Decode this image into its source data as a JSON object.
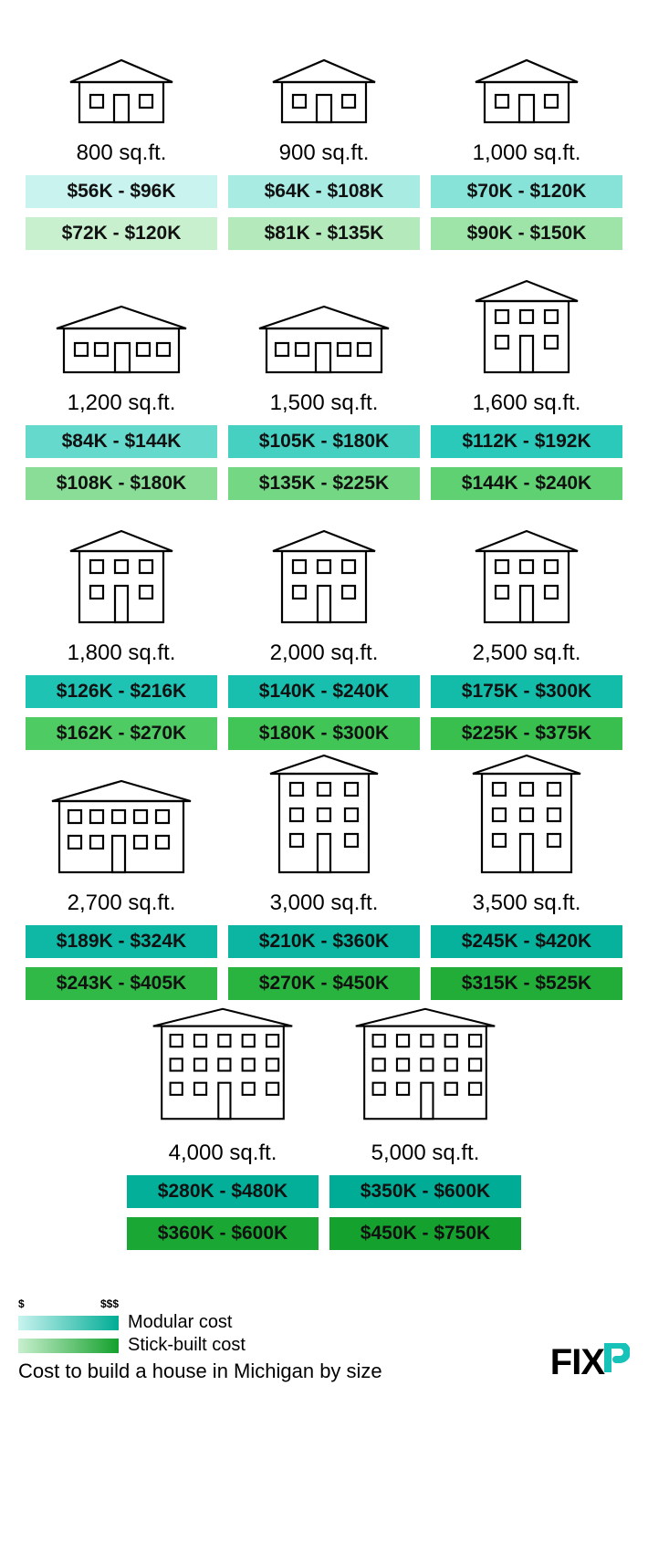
{
  "modular_colors": [
    "#c9f3ef",
    "#a8ebe3",
    "#87e2d8",
    "#66d9cd",
    "#45d0c2",
    "#2bc9ba",
    "#1fc3b4",
    "#18bfae",
    "#13bca9",
    "#0fb8a5",
    "#0bb5a1",
    "#07b29d",
    "#03af99",
    "#00ac95"
  ],
  "stick_colors": [
    "#c8efce",
    "#b3e9bb",
    "#9ee3a8",
    "#89dd96",
    "#74d784",
    "#5fd172",
    "#4fcb63",
    "#42c557",
    "#38bf4d",
    "#30b946",
    "#29b33f",
    "#22ad39",
    "#1ba733",
    "#14a12d"
  ],
  "items": [
    {
      "sqft": "800 sq.ft.",
      "modular": "$56K - $96K",
      "stick": "$72K - $120K",
      "house": "small1"
    },
    {
      "sqft": "900 sq.ft.",
      "modular": "$64K - $108K",
      "stick": "$81K - $135K",
      "house": "small1"
    },
    {
      "sqft": "1,000 sq.ft.",
      "modular": "$70K - $120K",
      "stick": "$90K - $150K",
      "house": "small1"
    },
    {
      "sqft": "1,200 sq.ft.",
      "modular": "$84K - $144K",
      "stick": "$108K - $180K",
      "house": "wide1"
    },
    {
      "sqft": "1,500 sq.ft.",
      "modular": "$105K - $180K",
      "stick": "$135K - $225K",
      "house": "wide1b"
    },
    {
      "sqft": "1,600 sq.ft.",
      "modular": "$112K - $192K",
      "stick": "$144K - $240K",
      "house": "two3"
    },
    {
      "sqft": "1,800 sq.ft.",
      "modular": "$126K - $216K",
      "stick": "$162K - $270K",
      "house": "two3"
    },
    {
      "sqft": "2,000 sq.ft.",
      "modular": "$140K - $240K",
      "stick": "$180K - $300K",
      "house": "two3"
    },
    {
      "sqft": "2,500 sq.ft.",
      "modular": "$175K - $300K",
      "stick": "$225K - $375K",
      "house": "two3"
    },
    {
      "sqft": "2,700 sq.ft.",
      "modular": "$189K - $324K",
      "stick": "$243K - $405K",
      "house": "two5"
    },
    {
      "sqft": "3,000 sq.ft.",
      "modular": "$210K - $360K",
      "stick": "$270K - $450K",
      "house": "three3"
    },
    {
      "sqft": "3,500 sq.ft.",
      "modular": "$245K - $420K",
      "stick": "$315K - $525K",
      "house": "three3"
    },
    {
      "sqft": "4,000 sq.ft.",
      "modular": "$280K - $480K",
      "stick": "$360K - $600K",
      "house": "three5"
    },
    {
      "sqft": "5,000 sq.ft.",
      "modular": "$350K - $600K",
      "stick": "$450K - $750K",
      "house": "three5"
    }
  ],
  "legend": {
    "scale_low": "$",
    "scale_high": "$$$",
    "modular_label": "Modular cost",
    "stick_label": "Stick-built cost"
  },
  "caption": "Cost to build a house in Michigan by size",
  "logo": {
    "text": "FIX",
    "r": "r"
  }
}
